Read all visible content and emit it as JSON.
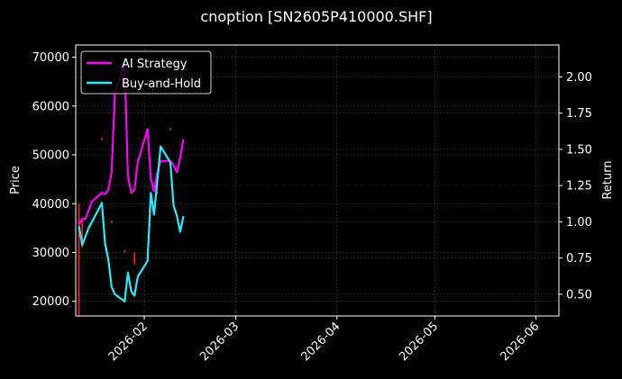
{
  "chart_data": {
    "type": "line",
    "title": "cnoption [SN2605P410000.SHF]",
    "ylabel": "Price",
    "y2label": "Return",
    "background": "#000000",
    "grid": true,
    "legend_position": "top-left",
    "ylim": [
      17000,
      72500
    ],
    "y2lim": [
      0.35,
      2.22
    ],
    "xlim": [
      "2026-01-11",
      "2026-06-08"
    ],
    "x_ticks": [
      "2026-02",
      "2026-03",
      "2026-04",
      "2026-05",
      "2026-06"
    ],
    "y_ticks": [
      20000,
      30000,
      40000,
      50000,
      60000,
      70000
    ],
    "y2_ticks": [
      "0.50",
      "0.75",
      "1.00",
      "1.25",
      "1.50",
      "1.75",
      "2.00"
    ],
    "series": [
      {
        "name": "AI Strategy",
        "color": "#ff00ff",
        "axis": "return",
        "x": [
          "2026-01-12",
          "2026-01-13",
          "2026-01-14",
          "2026-01-15",
          "2026-01-16",
          "2026-01-19",
          "2026-01-20",
          "2026-01-21",
          "2026-01-22",
          "2026-01-23",
          "2026-01-26",
          "2026-01-27",
          "2026-01-28",
          "2026-01-29",
          "2026-01-30",
          "2026-02-02",
          "2026-02-03",
          "2026-02-04",
          "2026-02-05",
          "2026-02-06",
          "2026-02-09",
          "2026-02-10",
          "2026-02-11",
          "2026-02-12",
          "2026-02-13"
        ],
        "values": [
          0.98,
          1.02,
          1.02,
          1.08,
          1.14,
          1.2,
          1.19,
          1.22,
          1.34,
          1.89,
          2.1,
          1.32,
          1.2,
          1.22,
          1.41,
          1.64,
          1.3,
          1.21,
          1.34,
          1.42,
          1.42,
          1.39,
          1.34,
          1.44,
          1.57
        ]
      },
      {
        "name": "Buy-and-Hold",
        "color": "#22eeff",
        "axis": "return",
        "x": [
          "2026-01-12",
          "2026-01-13",
          "2026-01-14",
          "2026-01-15",
          "2026-01-16",
          "2026-01-19",
          "2026-01-20",
          "2026-01-21",
          "2026-01-22",
          "2026-01-23",
          "2026-01-26",
          "2026-01-27",
          "2026-01-28",
          "2026-01-29",
          "2026-01-30",
          "2026-02-02",
          "2026-02-03",
          "2026-02-04",
          "2026-02-05",
          "2026-02-06",
          "2026-02-09",
          "2026-02-10",
          "2026-02-11",
          "2026-02-12",
          "2026-02-13"
        ],
        "values": [
          0.97,
          0.84,
          0.9,
          0.96,
          1.0,
          1.13,
          0.85,
          0.74,
          0.55,
          0.5,
          0.45,
          0.65,
          0.52,
          0.49,
          0.62,
          0.73,
          1.2,
          1.05,
          1.28,
          1.52,
          1.41,
          1.11,
          1.04,
          0.93,
          1.04
        ]
      }
    ],
    "price_bars": {
      "color": "#ff2020",
      "x": [
        "2026-01-12",
        "2026-01-13",
        "2026-01-19",
        "2026-01-22",
        "2026-01-26",
        "2026-01-29",
        "2026-02-05",
        "2026-02-09"
      ],
      "low": [
        17000,
        31000,
        53000,
        36000,
        30000,
        27500,
        42000,
        55000
      ],
      "high": [
        40000,
        37000,
        53500,
        36500,
        30500,
        30000,
        42500,
        55500
      ]
    }
  }
}
